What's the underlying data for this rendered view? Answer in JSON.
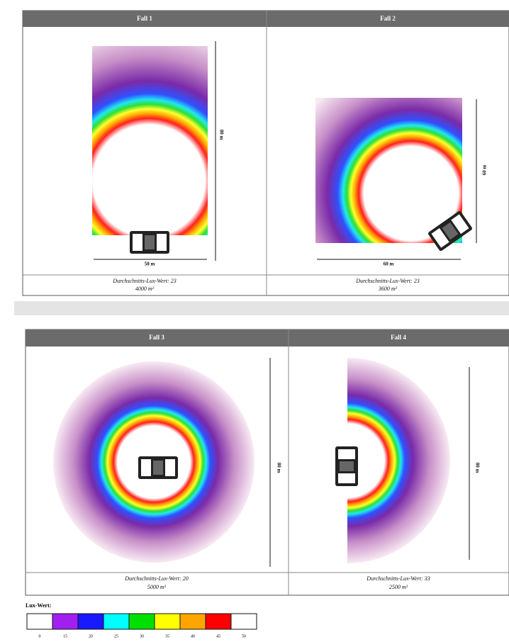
{
  "cases": [
    {
      "title": "Fall 1",
      "dims": [
        "50 m",
        "80 m"
      ],
      "caption": [
        "Durchschnitts-Lux-Wert: 23",
        "4000 m²"
      ]
    },
    {
      "title": "Fall 2",
      "dims": [
        "60 m",
        "60 m"
      ],
      "caption": [
        "Durchschnitts-Lux-Wert: 23",
        "3600 m²"
      ]
    },
    {
      "title": "Fall 3",
      "dims": [
        "80 m"
      ],
      "caption": [
        "Durchschnitts-Lux-Wert: 20",
        "5000 m²"
      ]
    },
    {
      "title": "Fall 4",
      "dims": [
        "80 m"
      ],
      "caption": [
        "Durchschnitts-Lux-Wert: 33",
        "2500 m²"
      ]
    }
  ],
  "legend": {
    "title": "Lux-Wert:",
    "labels": [
      0,
      15,
      20,
      25,
      30,
      35,
      40,
      45,
      50
    ],
    "colors": [
      "#ffffff",
      "#a020f0",
      "#1a1aff",
      "#00ffff",
      "#00e000",
      "#ffff00",
      "#ffa500",
      "#ff0000",
      "#ffffff"
    ]
  }
}
